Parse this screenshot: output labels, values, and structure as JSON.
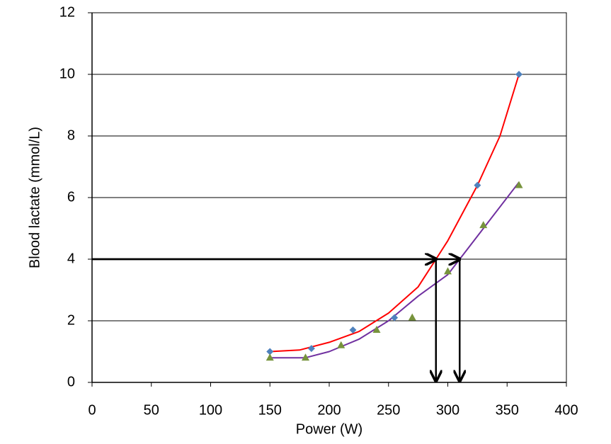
{
  "chart_data": {
    "type": "scatter",
    "xlabel": "Power (W)",
    "ylabel": "Blood lactate (mmol/L)",
    "xlim": [
      0,
      400
    ],
    "xticks": [
      0,
      50,
      100,
      150,
      200,
      250,
      300,
      350,
      400
    ],
    "ylim": [
      0,
      12
    ],
    "yticks": [
      0,
      2,
      4,
      6,
      8,
      10,
      12
    ],
    "grid": true,
    "series": [
      {
        "color": "#4f81bd",
        "marker": "diamond",
        "x": [
          150,
          185,
          220,
          255,
          325,
          360
        ],
        "values": [
          1.0,
          1.1,
          1.7,
          2.1,
          6.4,
          10
        ]
      },
      {
        "color": "#77933c",
        "marker": "triangle",
        "x": [
          150,
          180,
          210,
          240,
          270,
          300,
          330,
          360
        ],
        "values": [
          0.8,
          0.8,
          1.2,
          1.7,
          2.1,
          3.6,
          5.1,
          6.4
        ]
      }
    ],
    "trendlines": [
      {
        "color": "#ff0000",
        "x": [
          150,
          175,
          200,
          225,
          250,
          275,
          290,
          300,
          325,
          344,
          360
        ],
        "values": [
          1.0,
          1.05,
          1.3,
          1.65,
          2.25,
          3.1,
          4.0,
          4.6,
          6.4,
          8,
          10
        ]
      },
      {
        "color": "#7030a0",
        "x": [
          150,
          180,
          200,
          225,
          250,
          275,
          300,
          310,
          330,
          360
        ],
        "values": [
          0.8,
          0.8,
          1.0,
          1.4,
          2.0,
          2.8,
          3.5,
          4.0,
          5.0,
          6.5
        ]
      }
    ],
    "arrows": [
      {
        "x": 290,
        "y": 4
      },
      {
        "x": 310,
        "y": 4
      }
    ]
  }
}
